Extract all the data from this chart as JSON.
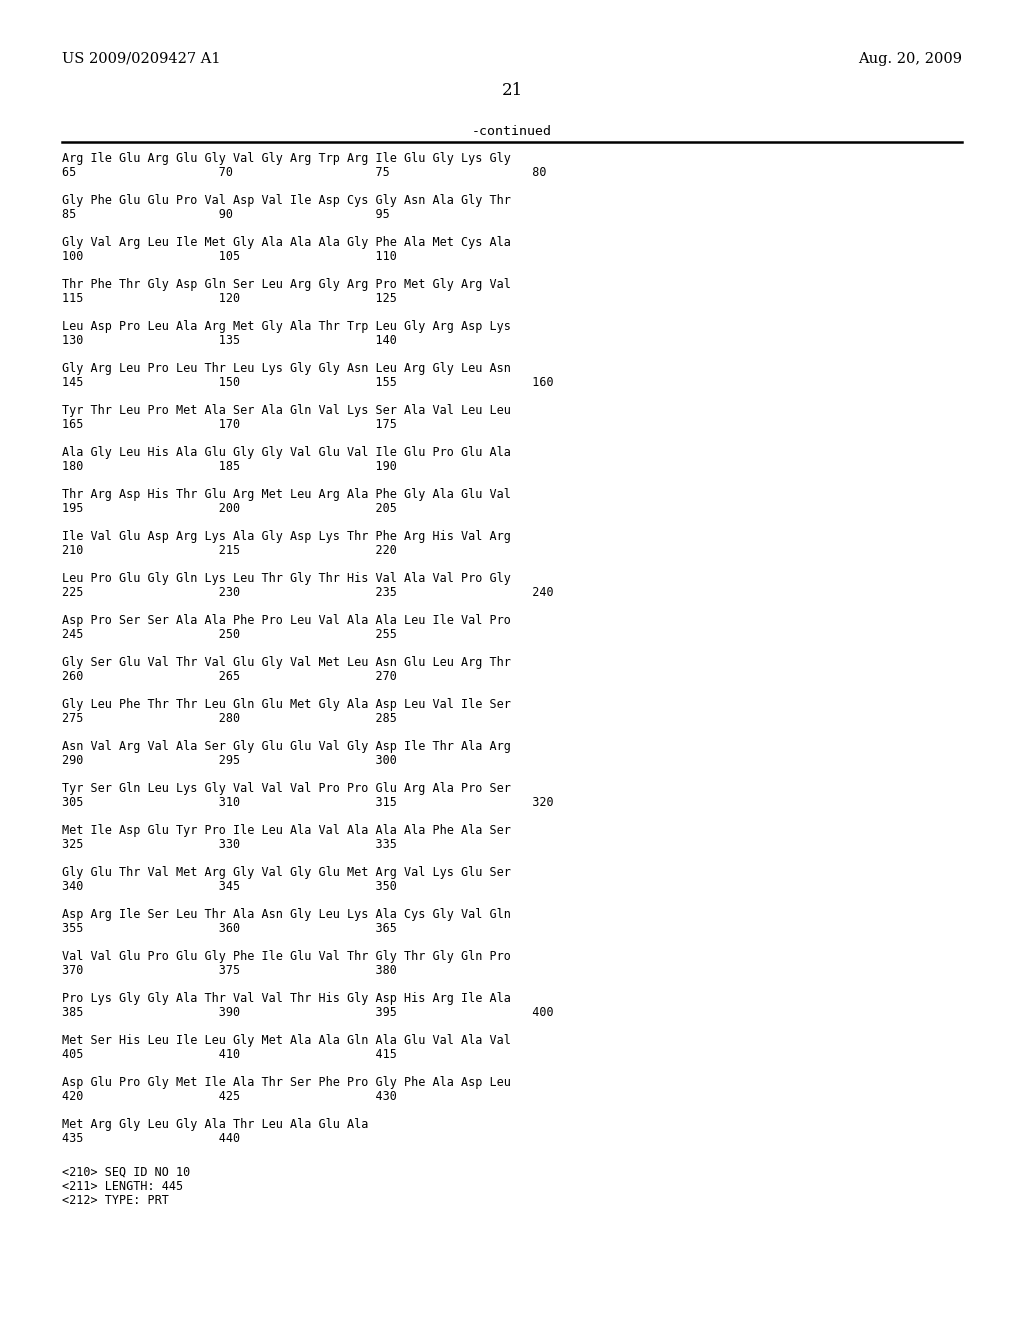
{
  "header_left": "US 2009/0209427 A1",
  "header_right": "Aug. 20, 2009",
  "page_number": "21",
  "continued_label": "-continued",
  "background_color": "#ffffff",
  "text_color": "#000000",
  "sequences": [
    [
      "Arg Ile Glu Arg Glu Gly Val Gly Arg Trp Arg Ile Glu Gly Lys Gly",
      "65                    70                    75                    80"
    ],
    [
      "Gly Phe Glu Glu Pro Val Asp Val Ile Asp Cys Gly Asn Ala Gly Thr",
      "85                    90                    95"
    ],
    [
      "Gly Val Arg Leu Ile Met Gly Ala Ala Ala Gly Phe Ala Met Cys Ala",
      "100                   105                   110"
    ],
    [
      "Thr Phe Thr Gly Asp Gln Ser Leu Arg Gly Arg Pro Met Gly Arg Val",
      "115                   120                   125"
    ],
    [
      "Leu Asp Pro Leu Ala Arg Met Gly Ala Thr Trp Leu Gly Arg Asp Lys",
      "130                   135                   140"
    ],
    [
      "Gly Arg Leu Pro Leu Thr Leu Lys Gly Gly Asn Leu Arg Gly Leu Asn",
      "145                   150                   155                   160"
    ],
    [
      "Tyr Thr Leu Pro Met Ala Ser Ala Gln Val Lys Ser Ala Val Leu Leu",
      "165                   170                   175"
    ],
    [
      "Ala Gly Leu His Ala Glu Gly Gly Val Glu Val Ile Glu Pro Glu Ala",
      "180                   185                   190"
    ],
    [
      "Thr Arg Asp His Thr Glu Arg Met Leu Arg Ala Phe Gly Ala Glu Val",
      "195                   200                   205"
    ],
    [
      "Ile Val Glu Asp Arg Lys Ala Gly Asp Lys Thr Phe Arg His Val Arg",
      "210                   215                   220"
    ],
    [
      "Leu Pro Glu Gly Gln Lys Leu Thr Gly Thr His Val Ala Val Pro Gly",
      "225                   230                   235                   240"
    ],
    [
      "Asp Pro Ser Ser Ala Ala Phe Pro Leu Val Ala Ala Leu Ile Val Pro",
      "245                   250                   255"
    ],
    [
      "Gly Ser Glu Val Thr Val Glu Gly Val Met Leu Asn Glu Leu Arg Thr",
      "260                   265                   270"
    ],
    [
      "Gly Leu Phe Thr Thr Leu Gln Glu Met Gly Ala Asp Leu Val Ile Ser",
      "275                   280                   285"
    ],
    [
      "Asn Val Arg Val Ala Ser Gly Glu Glu Val Gly Asp Ile Thr Ala Arg",
      "290                   295                   300"
    ],
    [
      "Tyr Ser Gln Leu Lys Gly Val Val Val Pro Pro Glu Arg Ala Pro Ser",
      "305                   310                   315                   320"
    ],
    [
      "Met Ile Asp Glu Tyr Pro Ile Leu Ala Val Ala Ala Ala Phe Ala Ser",
      "325                   330                   335"
    ],
    [
      "Gly Glu Thr Val Met Arg Gly Val Gly Glu Met Arg Val Lys Glu Ser",
      "340                   345                   350"
    ],
    [
      "Asp Arg Ile Ser Leu Thr Ala Asn Gly Leu Lys Ala Cys Gly Val Gln",
      "355                   360                   365"
    ],
    [
      "Val Val Glu Pro Glu Gly Phe Ile Glu Val Thr Gly Thr Gly Gln Pro",
      "370                   375                   380"
    ],
    [
      "Pro Lys Gly Gly Ala Thr Val Val Thr His Gly Asp His Arg Ile Ala",
      "385                   390                   395                   400"
    ],
    [
      "Met Ser His Leu Ile Leu Gly Met Ala Ala Gln Ala Glu Val Ala Val",
      "405                   410                   415"
    ],
    [
      "Asp Glu Pro Gly Met Ile Ala Thr Ser Phe Pro Gly Phe Ala Asp Leu",
      "420                   425                   430"
    ],
    [
      "Met Arg Gly Leu Gly Ala Thr Leu Ala Glu Ala",
      "435                   440"
    ]
  ],
  "footer_lines": [
    "<210> SEQ ID NO 10",
    "<211> LENGTH: 445",
    "<212> TYPE: PRT"
  ]
}
